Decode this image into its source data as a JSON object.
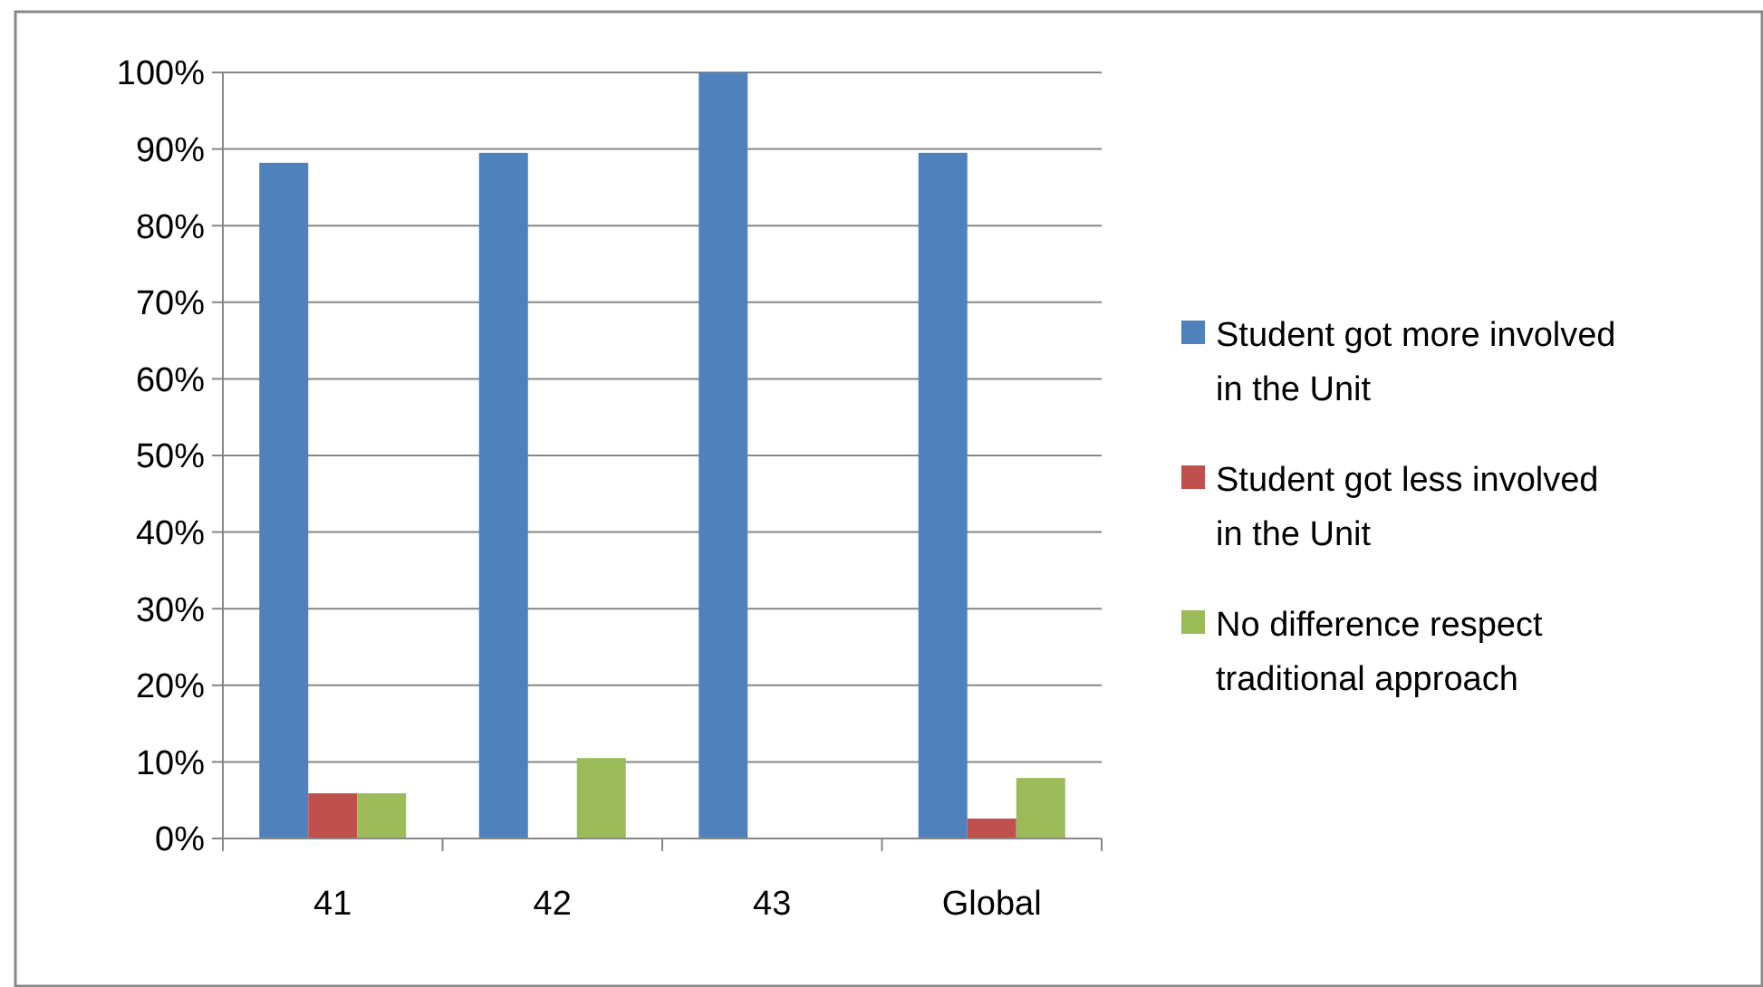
{
  "chart_data": {
    "type": "bar",
    "categories": [
      "41",
      "42",
      "43",
      "Global"
    ],
    "series": [
      {
        "name": "Student got more involved in the Unit",
        "color": "#4f81bd",
        "values": [
          88.2,
          89.5,
          100,
          89.5
        ]
      },
      {
        "name": "Student got less involved in the Unit",
        "color": "#c0504d",
        "values": [
          5.9,
          0,
          0,
          2.6
        ]
      },
      {
        "name": "No difference respect traditional approach",
        "color": "#9bbb59",
        "values": [
          5.9,
          10.5,
          0,
          7.9
        ]
      }
    ],
    "ylim": [
      0,
      100
    ],
    "yticks": [
      {
        "value": 0,
        "label": "0%"
      },
      {
        "value": 10,
        "label": "10%"
      },
      {
        "value": 20,
        "label": "20%"
      },
      {
        "value": 30,
        "label": "30%"
      },
      {
        "value": 40,
        "label": "40%"
      },
      {
        "value": 50,
        "label": "50%"
      },
      {
        "value": 60,
        "label": "60%"
      },
      {
        "value": 70,
        "label": "70%"
      },
      {
        "value": 80,
        "label": "80%"
      },
      {
        "value": 90,
        "label": "90%"
      },
      {
        "value": 100,
        "label": "100%"
      }
    ],
    "grid": "y",
    "legend": "right"
  }
}
